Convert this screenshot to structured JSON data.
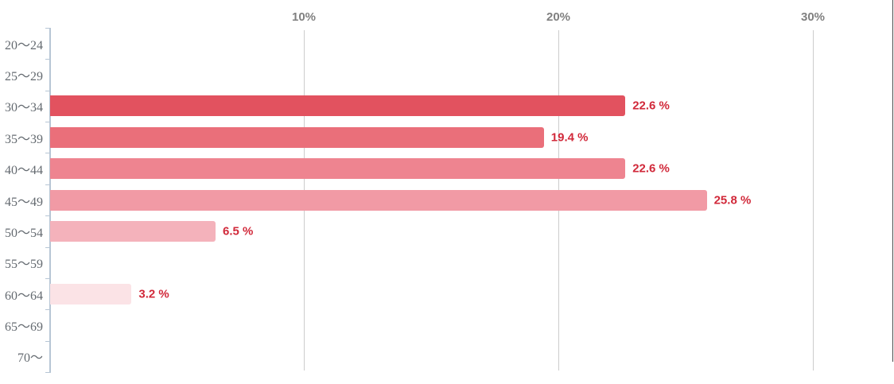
{
  "chart_data": {
    "type": "bar",
    "orientation": "horizontal",
    "title": "",
    "categories": [
      "20〜24",
      "25〜29",
      "30〜34",
      "35〜39",
      "40〜44",
      "45〜49",
      "50〜54",
      "55〜59",
      "60〜64",
      "65〜69",
      "70〜"
    ],
    "values": [
      0,
      0,
      22.6,
      19.4,
      22.6,
      25.8,
      6.5,
      0,
      3.2,
      0,
      0
    ],
    "value_labels": [
      "",
      "",
      "22.6 %",
      "19.4 %",
      "22.6 %",
      "25.8 %",
      "6.5 %",
      "",
      "3.2 %",
      "",
      ""
    ],
    "bar_colors": [
      "",
      "",
      "#e2525f",
      "#ea6f7a",
      "#ee8490",
      "#f19aa5",
      "#f4b2bb",
      "",
      "#fbe3e6",
      "",
      ""
    ],
    "x_axis": {
      "position": "top",
      "tick_labels": [
        "10%",
        "20%",
        "30%"
      ],
      "tick_values": [
        10,
        20,
        30
      ],
      "range": [
        0,
        33.2
      ]
    },
    "grid": true,
    "legend": "none",
    "colors": {
      "value_label": "#d1293a",
      "axis": "#b7c6d5",
      "gridline": "#cccccc",
      "x_tick_label": "#808080",
      "category_label": "#646a70",
      "background": "#ffffff",
      "right_edge_line": "#4a4a4a"
    }
  }
}
